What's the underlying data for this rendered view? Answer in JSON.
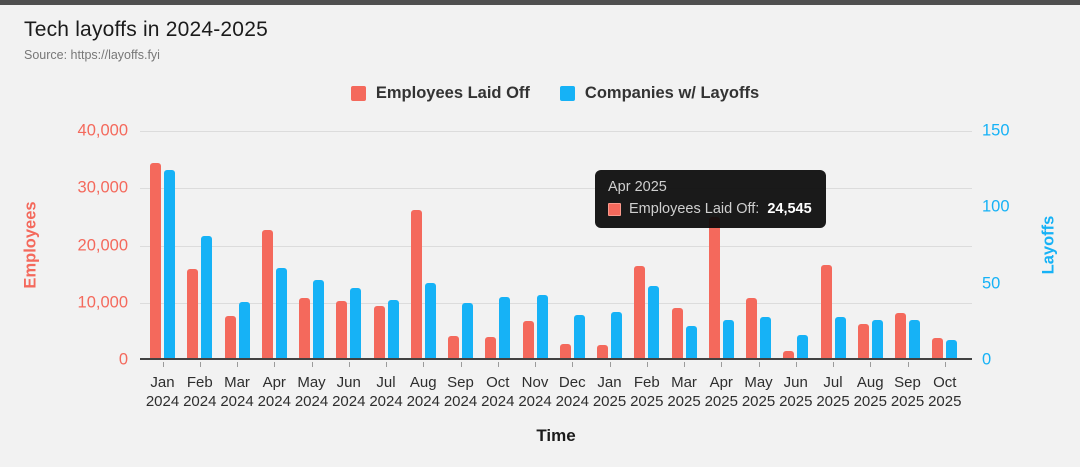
{
  "page": {
    "title": "Tech layoffs in 2024-2025",
    "source": "Source: https://layoffs.fyi"
  },
  "colors": {
    "employees": "#f4695c",
    "companies": "#16b2f6",
    "background": "#f2f2f2",
    "gridline": "#dcdcdc",
    "axis_line": "#424242",
    "tooltip_bg": "#0a0a0a"
  },
  "legend": {
    "items": [
      {
        "label": "Employees Laid Off",
        "color": "#f4695c"
      },
      {
        "label": "Companies w/ Layoffs",
        "color": "#16b2f6"
      }
    ]
  },
  "tooltip": {
    "title": "Apr 2025",
    "series_label": "Employees Laid Off:",
    "value": "24,545",
    "swatch_color": "#f4695c"
  },
  "chart_data": {
    "type": "bar",
    "title": "Tech layoffs in 2024-2025",
    "categories": [
      "Jan 2024",
      "Feb 2024",
      "Mar 2024",
      "Apr 2024",
      "May 2024",
      "Jun 2024",
      "Jul 2024",
      "Aug 2024",
      "Sep 2024",
      "Oct 2024",
      "Nov 2024",
      "Dec 2024",
      "Jan 2025",
      "Feb 2025",
      "Mar 2025",
      "Apr 2025",
      "May 2025",
      "Jun 2025",
      "Jul 2025",
      "Aug 2025",
      "Sep 2025",
      "Oct 2025"
    ],
    "series": [
      {
        "name": "Employees Laid Off",
        "axis": "left",
        "color": "#f4695c",
        "values": [
          34100,
          15600,
          7400,
          22400,
          10500,
          10000,
          9100,
          25800,
          3900,
          3600,
          6400,
          2500,
          2300,
          16100,
          8800,
          24545,
          10400,
          1300,
          16200,
          5900,
          7800,
          3500
        ]
      },
      {
        "name": "Companies w/ Layoffs",
        "axis": "right",
        "color": "#16b2f6",
        "values": [
          123,
          80,
          37,
          59,
          51,
          46,
          38,
          49,
          36,
          40,
          41,
          28,
          30,
          47,
          21,
          25,
          27,
          15,
          27,
          25,
          25,
          12
        ]
      }
    ],
    "left_axis": {
      "title": "Employees",
      "min": 0,
      "max": 40000,
      "ticks": [
        "0",
        "10,000",
        "20,000",
        "30,000",
        "40,000"
      ],
      "color": "#f4695c"
    },
    "right_axis": {
      "title": "Layoffs",
      "min": 0,
      "max": 150,
      "ticks": [
        "0",
        "50",
        "100",
        "150"
      ],
      "color": "#16b2f6"
    },
    "x_axis": {
      "title": "Time"
    },
    "grid": true,
    "legend_position": "top",
    "annotation": {
      "month": "Apr 2025",
      "series": "Employees Laid Off",
      "value": 24545
    }
  }
}
